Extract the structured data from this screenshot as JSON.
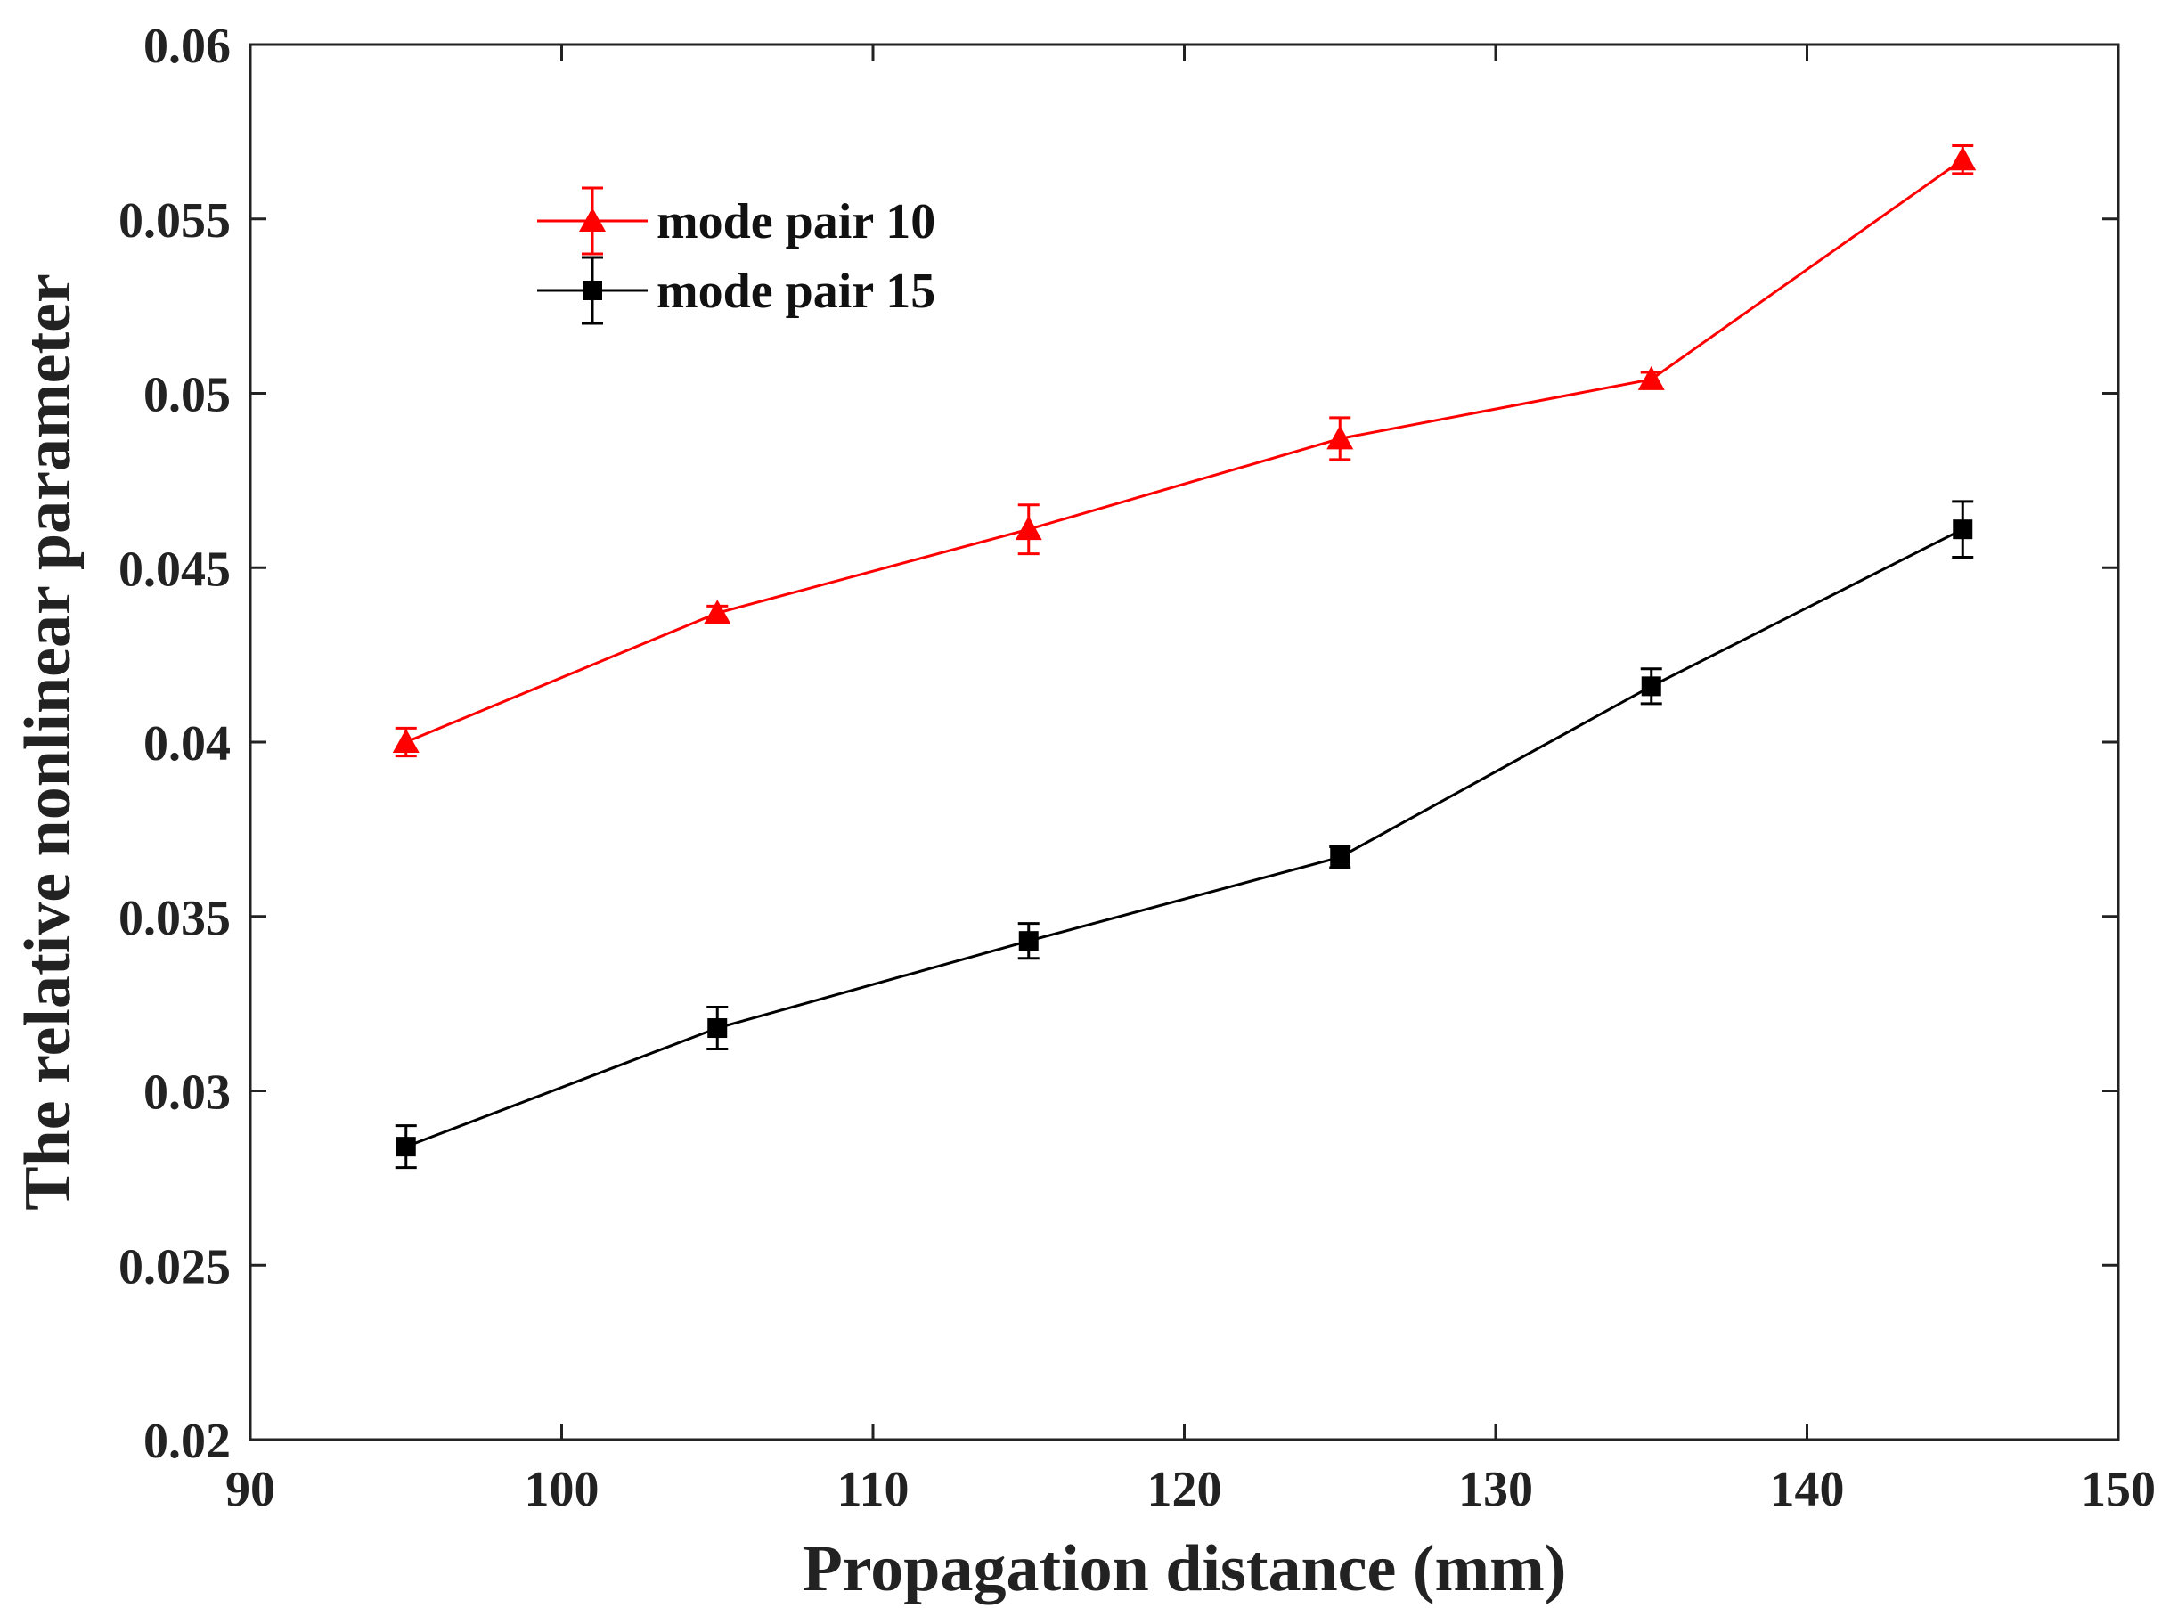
{
  "chart_data": {
    "type": "line",
    "title": "",
    "xlabel": "Propagation distance (mm)",
    "ylabel": "The relative nonlinear parameter",
    "xlim": [
      90,
      150
    ],
    "ylim": [
      0.02,
      0.06
    ],
    "xticks": [
      90,
      100,
      110,
      120,
      130,
      140,
      150
    ],
    "xtick_labels": [
      "90",
      "100",
      "110",
      "120",
      "130",
      "140",
      "150"
    ],
    "yticks": [
      0.02,
      0.025,
      0.03,
      0.035,
      0.04,
      0.045,
      0.05,
      0.055,
      0.06
    ],
    "ytick_labels": [
      "0.02",
      "0.025",
      "0.03",
      "0.035",
      "0.04",
      "0.045",
      "0.05",
      "0.055",
      "0.06"
    ],
    "grid": false,
    "legend_position": "top-left",
    "x": [
      95,
      105,
      115,
      125,
      135,
      145
    ],
    "series": [
      {
        "name": "mode pair 10",
        "color": "#ff0000",
        "marker": "triangle",
        "values": [
          0.04,
          0.0437,
          0.0461,
          0.0487,
          0.0504,
          0.0567
        ],
        "errors": [
          0.0004,
          0.0002,
          0.0007,
          0.0006,
          0.0002,
          0.0004
        ]
      },
      {
        "name": "mode pair 15",
        "color": "#000000",
        "marker": "square",
        "values": [
          0.0284,
          0.0318,
          0.0343,
          0.0367,
          0.0416,
          0.0461
        ],
        "errors": [
          0.0006,
          0.0006,
          0.0005,
          0.0003,
          0.0005,
          0.0008
        ]
      }
    ]
  }
}
